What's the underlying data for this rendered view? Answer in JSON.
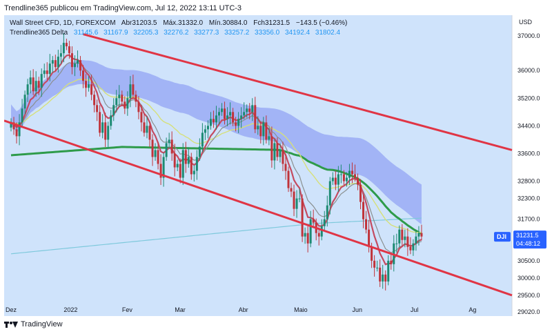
{
  "header": {
    "published": "Trendline365 publicou em TradingView.com, Jul 12, 2022 13:11 UTC-3"
  },
  "legend": {
    "symbol": "Wall Street CFD, 1D, FOREXCOM",
    "open": "Abr31203.5",
    "high": "Máx.31332.0",
    "low": "Mín.30884.0",
    "close": "Fch31231.5",
    "change": "−143.5 (−0.46%)",
    "indicator_name": "Trendline365 Delta",
    "indicator_values": [
      "31145.6",
      "31167.9",
      "32205.3",
      "32276.2",
      "33277.3",
      "33257.2",
      "33356.0",
      "34192.4",
      "31802.4"
    ]
  },
  "footer": {
    "brand": "TradingView"
  },
  "colors": {
    "background": "#cfe3fb",
    "candle_up": "#1b8a72",
    "candle_down": "#c0333a",
    "trend_channel": "#e03545",
    "band": "#7d8ef3",
    "ema_fast": "#c44b60",
    "ema_mid": "#8a9090",
    "sma_long_green": "#2e9b4a",
    "ema_yellow": "#d6e07a",
    "long_ma_cyan": "#7ec9dc",
    "price_tag": "#2962ff"
  },
  "chart_data": {
    "type": "candlestick",
    "price_axis_label": "USD",
    "y_ticks": [
      37000,
      36000,
      35200,
      34400,
      33600,
      32800,
      32300,
      31700,
      30500,
      30000,
      29500,
      29020
    ],
    "y_tick_labels": [
      "37000.0",
      "36000.0",
      "35200.0",
      "34400.0",
      "33600.0",
      "32800.0",
      "32300.0",
      "31700.0",
      "30500.0",
      "30000.0",
      "29500.0",
      "29020.0"
    ],
    "x_tick_labels": [
      "Dez",
      "2022",
      "Fev",
      "Mar",
      "Abr",
      "Maio",
      "Jun",
      "Jul",
      "Ag"
    ],
    "x_tick_index": [
      0,
      21,
      42,
      61,
      84,
      104,
      125,
      146,
      167
    ],
    "ylim": [
      28900,
      37600
    ],
    "last_price": "31231.5",
    "countdown": "04:48:12",
    "symbol_tag": "DJI",
    "close_prices": [
      34500,
      34300,
      34100,
      34500,
      34900,
      35300,
      35600,
      35800,
      35400,
      35700,
      35500,
      35900,
      36000,
      35900,
      36200,
      36300,
      36100,
      36400,
      36500,
      36800,
      36700,
      36500,
      36100,
      36200,
      36300,
      36000,
      35700,
      35500,
      35600,
      35300,
      35000,
      34800,
      34200,
      34500,
      34000,
      34400,
      34700,
      35000,
      35200,
      35300,
      35100,
      34900,
      35200,
      35600,
      35300,
      35100,
      34800,
      34500,
      34200,
      34400,
      34000,
      33500,
      33700,
      33300,
      32900,
      33500,
      33900,
      34000,
      33600,
      33200,
      33300,
      32900,
      33700,
      33300,
      33500,
      33000,
      33100,
      33500,
      33800,
      34200,
      34300,
      34400,
      34600,
      34500,
      34700,
      34800,
      34900,
      34600,
      34700,
      34800,
      34500,
      34400,
      34600,
      34700,
      34800,
      34900,
      34800,
      35000,
      34300,
      34400,
      34100,
      34500,
      34000,
      34100,
      33400,
      33900,
      33500,
      33700,
      33300,
      33100,
      32600,
      32500,
      32000,
      32300,
      32300,
      31200,
      31300,
      31000,
      31700,
      31600,
      31300,
      31200,
      31500,
      31700,
      32100,
      32800,
      32900,
      32700,
      33000,
      33000,
      32800,
      32900,
      33100,
      33000,
      32900,
      32700,
      32200,
      31700,
      31400,
      30900,
      30500,
      30300,
      30300,
      29900,
      30100,
      29900,
      30500,
      30400,
      31000,
      31000,
      31400,
      31100,
      31200,
      30900,
      30800,
      31000,
      31200,
      31300,
      31200
    ]
  }
}
